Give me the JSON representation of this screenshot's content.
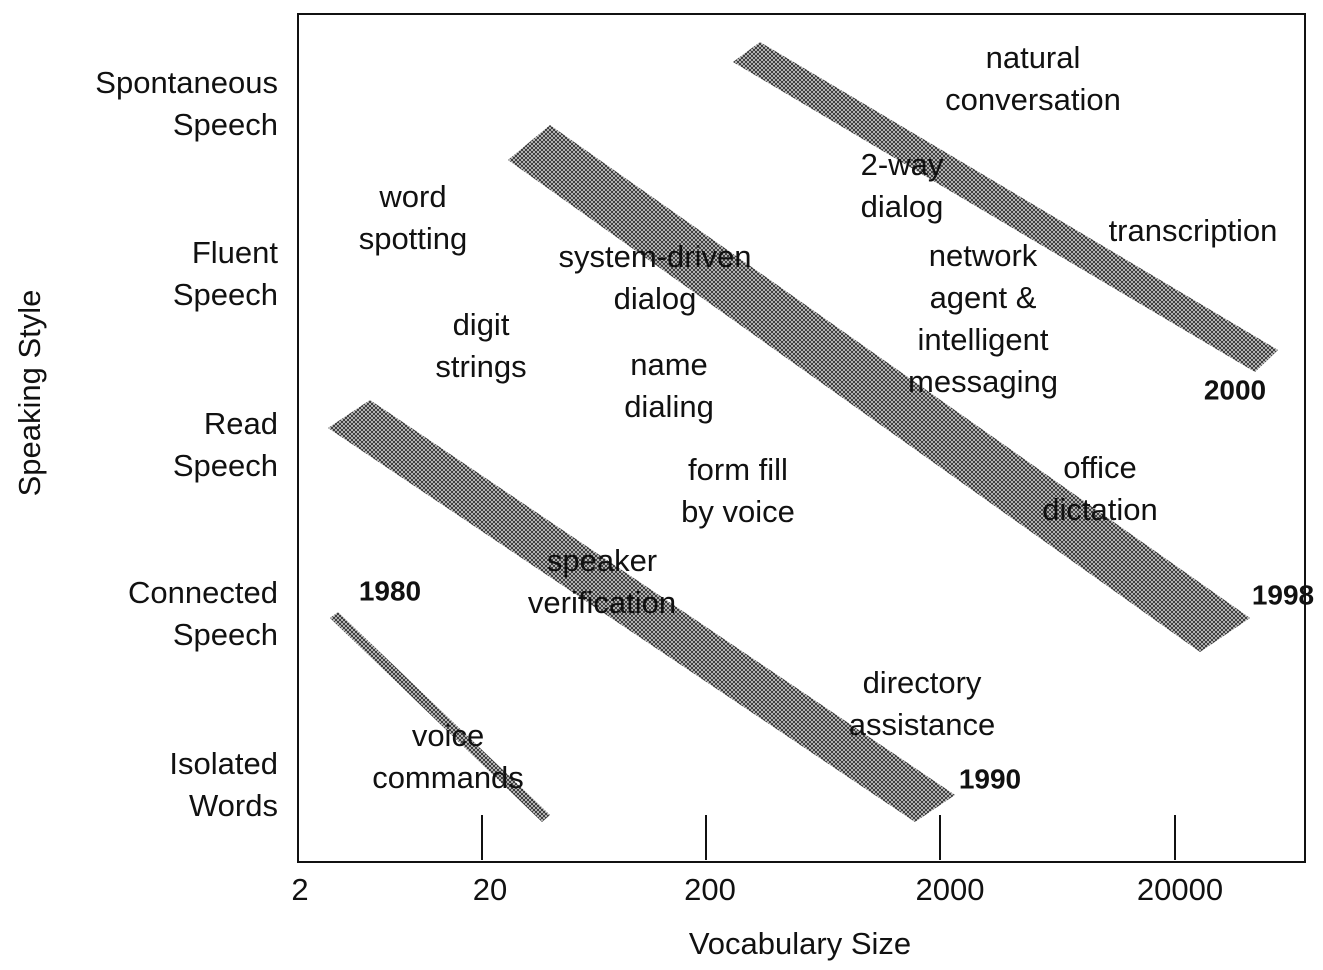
{
  "y_axis": {
    "title": "Speaking Style",
    "categories": [
      [
        "Spontaneous",
        "Speech"
      ],
      [
        "Fluent",
        "Speech"
      ],
      [
        "Read",
        "Speech"
      ],
      [
        "Connected",
        "Speech"
      ],
      [
        "Isolated",
        "Words"
      ]
    ]
  },
  "x_axis": {
    "title": "Vocabulary Size",
    "ticks": [
      "2",
      "20",
      "200",
      "2000",
      "20000"
    ]
  },
  "annotations": [
    [
      "natural",
      "conversation"
    ],
    [
      "2-way",
      "dialog"
    ],
    [
      "transcription"
    ],
    [
      "word",
      "spotting"
    ],
    [
      "system-driven",
      "dialog"
    ],
    [
      "network",
      "agent &",
      "intelligent",
      "messaging"
    ],
    [
      "digit",
      "strings"
    ],
    [
      "name",
      "dialing"
    ],
    [
      "form fill",
      "by voice"
    ],
    [
      "office",
      "dictation"
    ],
    [
      "speaker",
      "verification"
    ],
    [
      "directory",
      "assistance"
    ],
    [
      "voice",
      "commands"
    ]
  ],
  "years": [
    "1980",
    "1990",
    "1998",
    "2000"
  ]
}
